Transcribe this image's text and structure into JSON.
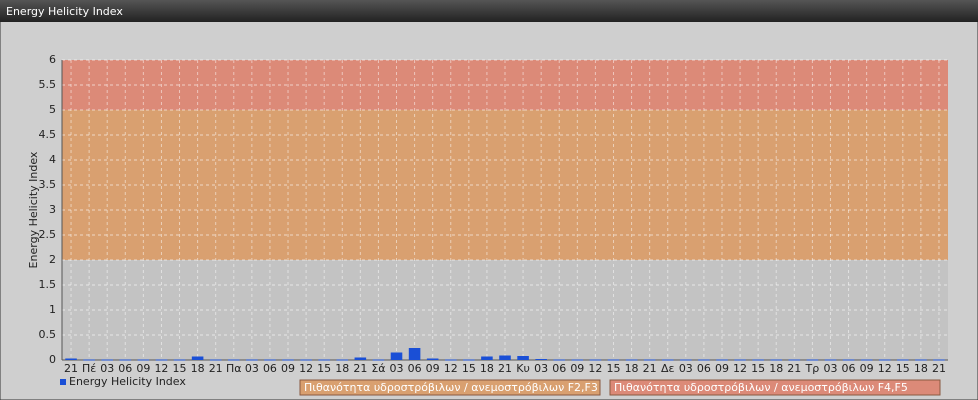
{
  "header": {
    "title": "Energy Helicity Index"
  },
  "chart_data": {
    "type": "bar",
    "y_label": "Energy Helicity Index",
    "categories": [
      "21",
      "Πέ",
      "03",
      "06",
      "09",
      "12",
      "15",
      "18",
      "21",
      "Πα",
      "03",
      "06",
      "09",
      "12",
      "15",
      "18",
      "21",
      "Σά",
      "03",
      "06",
      "09",
      "12",
      "15",
      "18",
      "21",
      "Κυ",
      "03",
      "06",
      "09",
      "12",
      "15",
      "18",
      "21",
      "Δε",
      "03",
      "06",
      "09",
      "12",
      "15",
      "18",
      "21",
      "Τρ",
      "03",
      "06",
      "09",
      "12",
      "15",
      "18",
      "21"
    ],
    "series": [
      {
        "name": "Energy Helicity Index",
        "color": "#1a4fd6",
        "values": [
          0.03,
          0.01,
          0.01,
          0.01,
          0.01,
          0.01,
          0.01,
          0.07,
          0.01,
          0.01,
          0.01,
          0.01,
          0.01,
          0.01,
          0.01,
          0.01,
          0.05,
          0.01,
          0.15,
          0.24,
          0.03,
          0.01,
          0.01,
          0.07,
          0.09,
          0.08,
          0.02,
          0.01,
          0.01,
          0.01,
          0.01,
          0.01,
          0.01,
          0.01,
          0.01,
          0.01,
          0.01,
          0.01,
          0.01,
          0.01,
          0.01,
          0.01,
          0.01,
          0.01,
          0.01,
          0.01,
          0.01,
          0.01,
          0.01
        ]
      }
    ],
    "bands": [
      {
        "from": 0,
        "to": 2,
        "color": "#c3c3c3"
      },
      {
        "from": 2,
        "to": 5,
        "color": "#d9a070",
        "label": "Πιθανότητα υδροστρόβιλων / ανεμοστρόβιλων F2,F3"
      },
      {
        "from": 5,
        "to": 6,
        "color": "#dc8a78",
        "label": "Πιθανότητα υδροστρόβιλων / ανεμοστρόβιλων F4,F5"
      }
    ],
    "ylim": [
      0,
      6
    ],
    "yticks": [
      0,
      0.5,
      1,
      1.5,
      2,
      2.5,
      3,
      3.5,
      4,
      4.5,
      5,
      5.5,
      6
    ],
    "grid": true
  }
}
